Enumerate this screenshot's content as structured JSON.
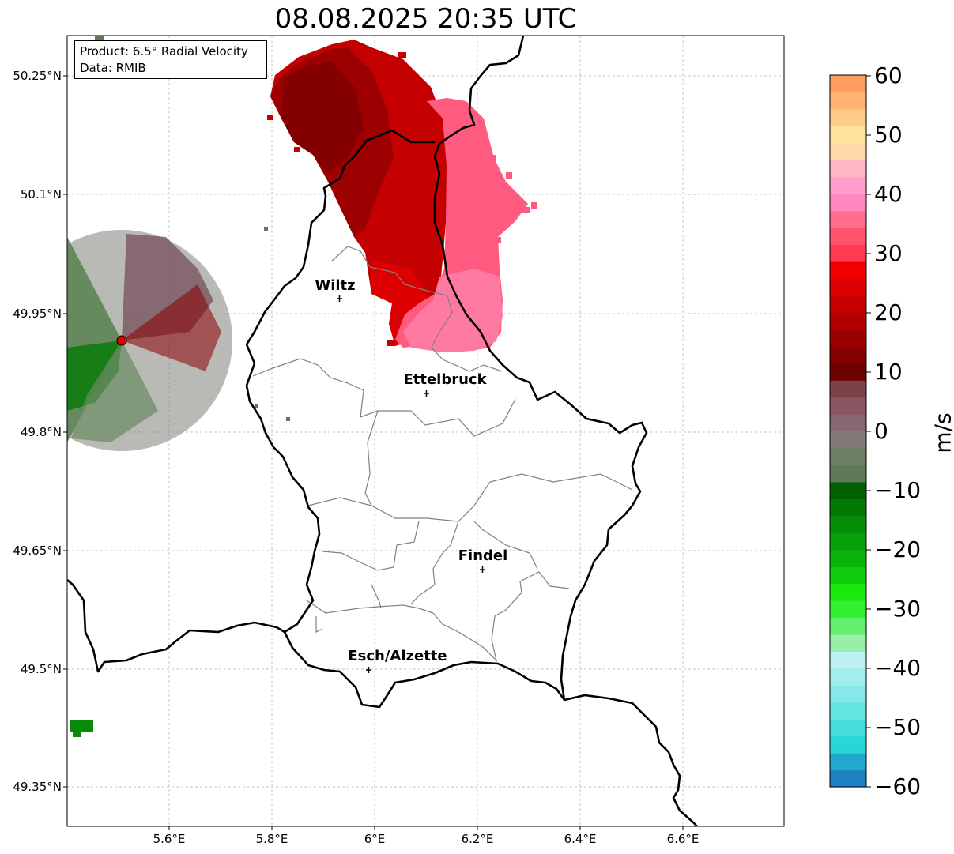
{
  "title": "08.08.2025 20:35 UTC",
  "info": {
    "product": "Product: 6.5° Radial Velocity",
    "source": "Data: RMIB"
  },
  "axes": {
    "y_ticks": [
      "50.25°N",
      "50.1°N",
      "49.95°N",
      "49.8°N",
      "49.65°N",
      "49.5°N",
      "49.35°N"
    ],
    "x_ticks": [
      "5.6°E",
      "5.8°E",
      "6°E",
      "6.2°E",
      "6.4°E",
      "6.6°E"
    ]
  },
  "cities": [
    {
      "name": "Wiltz"
    },
    {
      "name": "Ettelbruck"
    },
    {
      "name": "Findel"
    },
    {
      "name": "Esch/Alzette"
    }
  ],
  "colorbar": {
    "unit": "m/s",
    "ticks": [
      "60",
      "50",
      "40",
      "30",
      "20",
      "10",
      "0",
      "−10",
      "−20",
      "−30",
      "−40",
      "−50",
      "−60"
    ],
    "range": [
      -60,
      60
    ],
    "colors": [
      "#2081c2",
      "#22a8cc",
      "#28d6d6",
      "#45dcdc",
      "#64e3e3",
      "#85e9e9",
      "#a2eeee",
      "#bef2f2",
      "#98f0a8",
      "#62f06e",
      "#34f030",
      "#1ae80f",
      "#0ecc0c",
      "#0ab40a",
      "#08a008",
      "#068c06",
      "#047804",
      "#026002",
      "#5e7a56",
      "#6b8063",
      "#827a78",
      "#866875",
      "#8a5661",
      "#7d4246",
      "#6e0000",
      "#850000",
      "#9b0000",
      "#b20000",
      "#c80000",
      "#dc0000",
      "#f00000",
      "#ff3a52",
      "#ff5470",
      "#ff6e8a",
      "#ff88c0",
      "#ff9ecd",
      "#ffb8c4",
      "#ffd8aa",
      "#ffe29c",
      "#ffcc88",
      "#ffb474",
      "#ff9e5c"
    ]
  },
  "palette": {
    "border_country": "#000000",
    "border_canton": "#808080",
    "grid": "#b0b0b0",
    "radar_site": "#e00000"
  }
}
